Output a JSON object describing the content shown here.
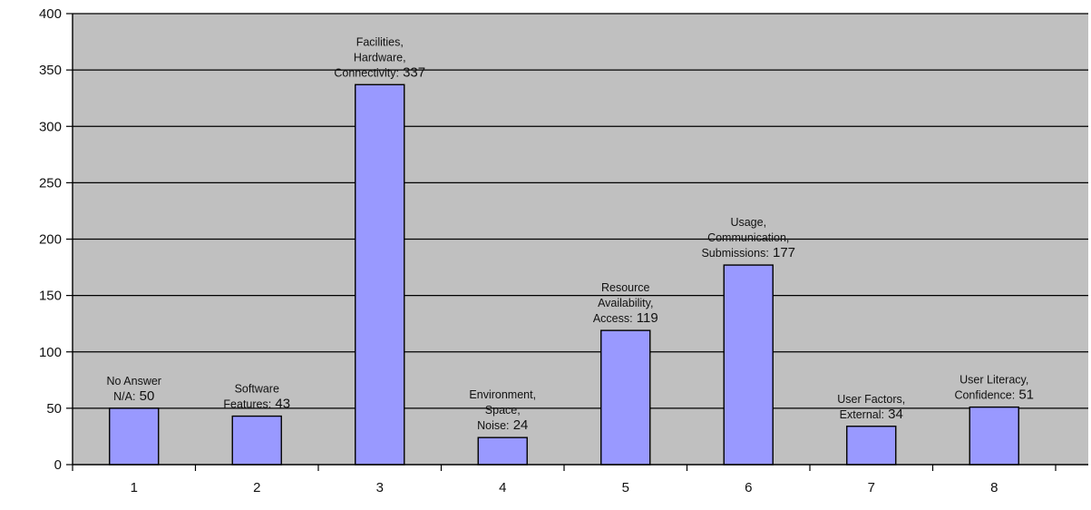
{
  "colors": {
    "plot_background": "#c0c0c0",
    "bar_fill": "#9999ff",
    "bar_stroke": "#000000",
    "gridline": "#000000",
    "page_background": "#ffffff"
  },
  "chart_data": {
    "type": "bar",
    "categories": [
      "1",
      "2",
      "3",
      "4",
      "5",
      "6",
      "7",
      "8"
    ],
    "values": [
      50,
      43,
      337,
      24,
      119,
      177,
      34,
      51
    ],
    "title": "",
    "xlabel": "",
    "ylabel": "",
    "ylim": [
      0,
      400
    ],
    "yticks": [
      0,
      50,
      100,
      150,
      200,
      250,
      300,
      350,
      400
    ],
    "grid": true,
    "legend": "none",
    "annotations": [
      {
        "lines": [
          "No Answer",
          "N/A:"
        ],
        "value": "50"
      },
      {
        "lines": [
          "Software",
          "Features:"
        ],
        "value": "43"
      },
      {
        "lines": [
          "Facilities,",
          "Hardware,",
          "Connectivity:"
        ],
        "value": "337"
      },
      {
        "lines": [
          "Environment,",
          "Space,",
          "Noise:"
        ],
        "value": "24"
      },
      {
        "lines": [
          "Resource",
          "Availability,",
          "Access:"
        ],
        "value": "119"
      },
      {
        "lines": [
          "Usage,",
          "Communication,",
          "Submissions:"
        ],
        "value": "177"
      },
      {
        "lines": [
          "User Factors,",
          "External:"
        ],
        "value": "34"
      },
      {
        "lines": [
          "User Literacy,",
          "Confidence:"
        ],
        "value": "51"
      }
    ]
  }
}
